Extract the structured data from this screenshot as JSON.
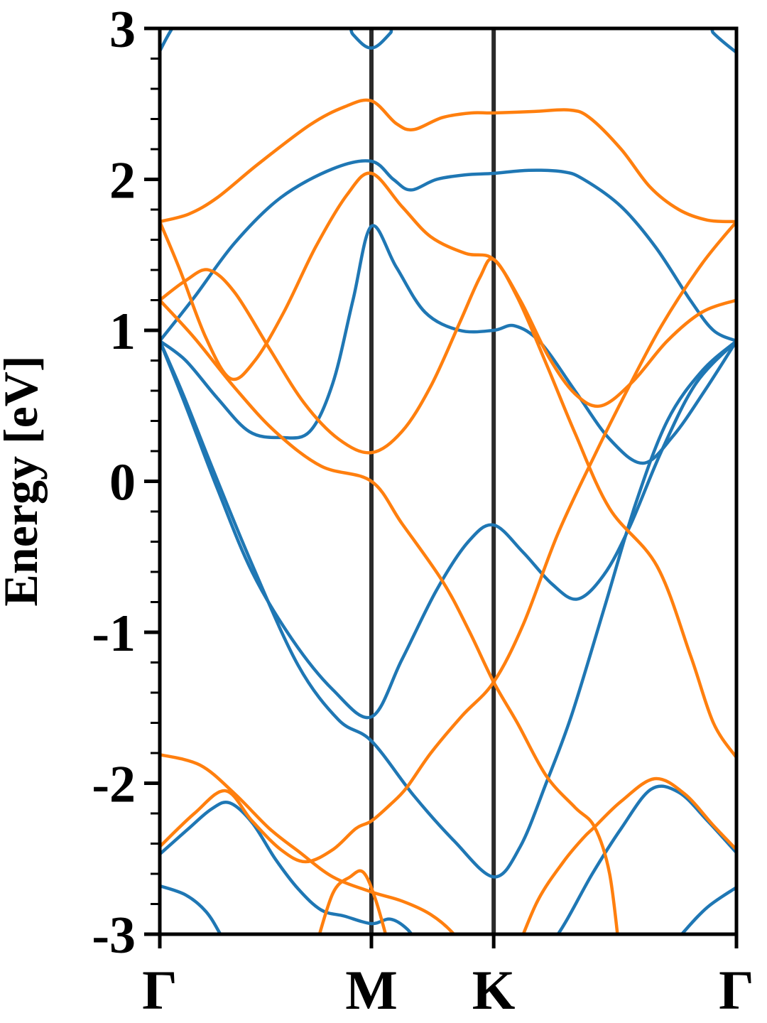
{
  "chart_data": {
    "type": "line",
    "title": "",
    "xlabel": "",
    "ylabel": "Energy [eV]",
    "ylim": [
      -3,
      3
    ],
    "grid": false,
    "legend_position": "none",
    "y_major_ticks": [
      3,
      2,
      1,
      0,
      -1,
      -2,
      -3
    ],
    "y_minor_step": 0.2,
    "x_axis_note": "k-path through high-symmetry points, positions as fraction of total path",
    "x_ticks": [
      {
        "label": "Γ",
        "pos": 0.0
      },
      {
        "label": "M",
        "pos": 0.367
      },
      {
        "label": "K",
        "pos": 0.579
      },
      {
        "label": "Γ",
        "pos": 1.0
      }
    ],
    "high_symmetry_vlines": [
      0.367,
      0.579
    ],
    "colors": {
      "band_blue": "#1f77b4",
      "band_orange": "#ff7f0e",
      "axis": "#000000",
      "vline": "#2a2a2a"
    },
    "series": [
      {
        "name": "blue-band-1",
        "color": "band_blue",
        "points": [
          [
            0,
            2.85
          ],
          [
            0.02,
            2.99
          ],
          [
            0.05,
            3.15
          ],
          [
            0.3,
            3.15
          ],
          [
            0.335,
            2.96
          ],
          [
            0.367,
            2.87
          ],
          [
            0.4,
            2.97
          ],
          [
            0.435,
            3.15
          ],
          [
            0.92,
            3.15
          ],
          [
            0.96,
            2.97
          ],
          [
            1,
            2.84
          ]
        ]
      },
      {
        "name": "blue-band-2",
        "color": "band_blue",
        "points": [
          [
            0,
            0.93
          ],
          [
            0.06,
            1.22
          ],
          [
            0.13,
            1.58
          ],
          [
            0.21,
            1.88
          ],
          [
            0.3,
            2.07
          ],
          [
            0.367,
            2.12
          ],
          [
            0.405,
            2.0
          ],
          [
            0.435,
            1.93
          ],
          [
            0.48,
            2.0
          ],
          [
            0.53,
            2.03
          ],
          [
            0.579,
            2.04
          ],
          [
            0.64,
            2.06
          ],
          [
            0.7,
            2.05
          ],
          [
            0.735,
            2.0
          ],
          [
            0.8,
            1.82
          ],
          [
            0.86,
            1.55
          ],
          [
            0.92,
            1.2
          ],
          [
            0.96,
            1.0
          ],
          [
            1,
            0.93
          ]
        ]
      },
      {
        "name": "blue-band-3",
        "color": "band_blue",
        "points": [
          [
            0,
            0.93
          ],
          [
            0.045,
            0.8
          ],
          [
            0.1,
            0.55
          ],
          [
            0.155,
            0.33
          ],
          [
            0.21,
            0.29
          ],
          [
            0.26,
            0.33
          ],
          [
            0.3,
            0.65
          ],
          [
            0.335,
            1.2
          ],
          [
            0.367,
            1.69
          ],
          [
            0.41,
            1.42
          ],
          [
            0.46,
            1.12
          ],
          [
            0.52,
            1.0
          ],
          [
            0.579,
            1.0
          ],
          [
            0.615,
            1.03
          ],
          [
            0.66,
            0.92
          ],
          [
            0.72,
            0.6
          ],
          [
            0.78,
            0.28
          ],
          [
            0.838,
            0.12
          ],
          [
            0.89,
            0.3
          ],
          [
            0.945,
            0.6
          ],
          [
            1,
            0.93
          ]
        ]
      },
      {
        "name": "blue-band-4",
        "color": "band_blue",
        "points": [
          [
            0,
            0.93
          ],
          [
            0.045,
            0.5
          ],
          [
            0.1,
            -0.05
          ],
          [
            0.16,
            -0.6
          ],
          [
            0.23,
            -1.05
          ],
          [
            0.3,
            -1.38
          ],
          [
            0.367,
            -1.56
          ],
          [
            0.42,
            -1.18
          ],
          [
            0.48,
            -0.72
          ],
          [
            0.535,
            -0.4
          ],
          [
            0.579,
            -0.29
          ],
          [
            0.63,
            -0.47
          ],
          [
            0.68,
            -0.68
          ],
          [
            0.724,
            -0.78
          ],
          [
            0.77,
            -0.62
          ],
          [
            0.815,
            -0.3
          ],
          [
            0.87,
            0.2
          ],
          [
            0.93,
            0.65
          ],
          [
            1,
            0.93
          ]
        ]
      },
      {
        "name": "blue-band-5",
        "color": "band_blue",
        "points": [
          [
            0,
            0.93
          ],
          [
            0.04,
            0.58
          ],
          [
            0.09,
            0.1
          ],
          [
            0.16,
            -0.55
          ],
          [
            0.24,
            -1.22
          ],
          [
            0.31,
            -1.58
          ],
          [
            0.367,
            -1.72
          ],
          [
            0.44,
            -2.08
          ],
          [
            0.51,
            -2.38
          ],
          [
            0.579,
            -2.62
          ],
          [
            0.625,
            -2.42
          ],
          [
            0.67,
            -2.0
          ],
          [
            0.714,
            -1.55
          ],
          [
            0.77,
            -0.85
          ],
          [
            0.825,
            -0.15
          ],
          [
            0.88,
            0.4
          ],
          [
            0.94,
            0.73
          ],
          [
            1,
            0.93
          ]
        ]
      },
      {
        "name": "blue-band-6",
        "color": "band_blue",
        "points": [
          [
            0,
            -2.47
          ],
          [
            0.05,
            -2.3
          ],
          [
            0.09,
            -2.17
          ],
          [
            0.121,
            -2.13
          ],
          [
            0.16,
            -2.26
          ],
          [
            0.2,
            -2.5
          ],
          [
            0.24,
            -2.7
          ],
          [
            0.28,
            -2.84
          ],
          [
            0.32,
            -2.88
          ],
          [
            0.367,
            -2.93
          ],
          [
            0.4,
            -2.9
          ],
          [
            0.43,
            -2.97
          ],
          [
            0.46,
            -3.12
          ],
          [
            0.52,
            -3.3
          ],
          [
            0.62,
            -3.3
          ],
          [
            0.687,
            -3.02
          ],
          [
            0.75,
            -2.6
          ],
          [
            0.8,
            -2.3
          ],
          [
            0.852,
            -2.04
          ],
          [
            0.9,
            -2.06
          ],
          [
            0.95,
            -2.25
          ],
          [
            1,
            -2.46
          ]
        ]
      },
      {
        "name": "blue-band-7",
        "color": "band_blue",
        "points": [
          [
            0,
            -2.68
          ],
          [
            0.045,
            -2.74
          ],
          [
            0.08,
            -2.85
          ],
          [
            0.105,
            -3.0
          ],
          [
            0.13,
            -3.18
          ],
          [
            0.86,
            -3.2
          ],
          [
            0.905,
            -3.0
          ],
          [
            0.95,
            -2.82
          ],
          [
            1,
            -2.69
          ]
        ]
      },
      {
        "name": "orange-band-1",
        "color": "band_orange",
        "points": [
          [
            0,
            1.72
          ],
          [
            0.05,
            1.77
          ],
          [
            0.1,
            1.88
          ],
          [
            0.17,
            2.1
          ],
          [
            0.26,
            2.36
          ],
          [
            0.32,
            2.48
          ],
          [
            0.367,
            2.52
          ],
          [
            0.41,
            2.37
          ],
          [
            0.44,
            2.33
          ],
          [
            0.49,
            2.41
          ],
          [
            0.54,
            2.44
          ],
          [
            0.579,
            2.44
          ],
          [
            0.65,
            2.45
          ],
          [
            0.71,
            2.46
          ],
          [
            0.745,
            2.41
          ],
          [
            0.8,
            2.2
          ],
          [
            0.85,
            1.95
          ],
          [
            0.9,
            1.8
          ],
          [
            0.95,
            1.73
          ],
          [
            1,
            1.72
          ]
        ]
      },
      {
        "name": "orange-band-2",
        "color": "band_orange",
        "points": [
          [
            0,
            1.72
          ],
          [
            0.035,
            1.4
          ],
          [
            0.08,
            0.95
          ],
          [
            0.123,
            0.68
          ],
          [
            0.165,
            0.8
          ],
          [
            0.215,
            1.12
          ],
          [
            0.27,
            1.55
          ],
          [
            0.325,
            1.9
          ],
          [
            0.367,
            2.04
          ],
          [
            0.42,
            1.82
          ],
          [
            0.47,
            1.62
          ],
          [
            0.53,
            1.51
          ],
          [
            0.579,
            1.47
          ],
          [
            0.625,
            1.2
          ],
          [
            0.675,
            0.82
          ],
          [
            0.72,
            0.58
          ],
          [
            0.765,
            0.5
          ],
          [
            0.82,
            0.66
          ],
          [
            0.88,
            0.93
          ],
          [
            0.94,
            1.12
          ],
          [
            1,
            1.2
          ]
        ]
      },
      {
        "name": "orange-band-3",
        "color": "band_orange",
        "points": [
          [
            0,
            1.2
          ],
          [
            0.045,
            1.33
          ],
          [
            0.085,
            1.4
          ],
          [
            0.13,
            1.25
          ],
          [
            0.19,
            0.88
          ],
          [
            0.25,
            0.52
          ],
          [
            0.31,
            0.28
          ],
          [
            0.367,
            0.19
          ],
          [
            0.42,
            0.33
          ],
          [
            0.47,
            0.63
          ],
          [
            0.52,
            1.05
          ],
          [
            0.555,
            1.35
          ],
          [
            0.579,
            1.47
          ],
          [
            0.62,
            1.22
          ],
          [
            0.67,
            0.78
          ],
          [
            0.72,
            0.32
          ],
          [
            0.78,
            -0.18
          ],
          [
            0.862,
            -0.56
          ],
          [
            0.92,
            -1.15
          ],
          [
            0.96,
            -1.6
          ],
          [
            1,
            -1.83
          ]
        ]
      },
      {
        "name": "orange-band-4",
        "color": "band_orange",
        "points": [
          [
            0,
            1.2
          ],
          [
            0.06,
            0.95
          ],
          [
            0.13,
            0.62
          ],
          [
            0.2,
            0.33
          ],
          [
            0.28,
            0.1
          ],
          [
            0.367,
            0.0
          ],
          [
            0.42,
            -0.28
          ],
          [
            0.49,
            -0.66
          ],
          [
            0.535,
            -0.98
          ],
          [
            0.579,
            -1.33
          ],
          [
            0.62,
            -1.6
          ],
          [
            0.67,
            -1.95
          ],
          [
            0.72,
            -2.16
          ],
          [
            0.754,
            -2.29
          ],
          [
            0.78,
            -2.6
          ],
          [
            0.798,
            -3.15
          ]
        ]
      },
      {
        "name": "orange-band-5",
        "color": "band_orange",
        "points": [
          [
            0,
            -1.81
          ],
          [
            0.07,
            -1.88
          ],
          [
            0.13,
            -2.07
          ],
          [
            0.19,
            -2.3
          ],
          [
            0.24,
            -2.45
          ],
          [
            0.3,
            -2.62
          ],
          [
            0.367,
            -2.72
          ],
          [
            0.42,
            -2.78
          ],
          [
            0.47,
            -2.87
          ],
          [
            0.51,
            -3.0
          ],
          [
            0.535,
            -3.15
          ]
        ]
      },
      {
        "name": "orange-band-6",
        "color": "band_orange",
        "points": [
          [
            0,
            -2.42
          ],
          [
            0.06,
            -2.2
          ],
          [
            0.114,
            -2.05
          ],
          [
            0.16,
            -2.25
          ],
          [
            0.21,
            -2.44
          ],
          [
            0.253,
            -2.52
          ],
          [
            0.3,
            -2.44
          ],
          [
            0.34,
            -2.3
          ],
          [
            0.367,
            -2.25
          ],
          [
            0.4,
            -2.14
          ],
          [
            0.428,
            -2.03
          ],
          [
            0.47,
            -1.8
          ],
          [
            0.525,
            -1.55
          ],
          [
            0.579,
            -1.33
          ],
          [
            0.63,
            -0.95
          ],
          [
            0.69,
            -0.35
          ],
          [
            0.755,
            0.18
          ],
          [
            0.81,
            0.6
          ],
          [
            0.87,
            1.03
          ],
          [
            0.94,
            1.44
          ],
          [
            1,
            1.72
          ]
        ]
      },
      {
        "name": "orange-band-7",
        "color": "band_orange",
        "points": [
          [
            0.268,
            -3.12
          ],
          [
            0.3,
            -2.73
          ],
          [
            0.33,
            -2.62
          ],
          [
            0.353,
            -2.59
          ],
          [
            0.375,
            -2.78
          ],
          [
            0.4,
            -3.12
          ]
        ]
      },
      {
        "name": "orange-band-8",
        "color": "band_orange",
        "points": [
          [
            0.615,
            -3.15
          ],
          [
            0.655,
            -2.78
          ],
          [
            0.7,
            -2.52
          ],
          [
            0.735,
            -2.36
          ],
          [
            0.754,
            -2.29
          ],
          [
            0.8,
            -2.12
          ],
          [
            0.858,
            -1.97
          ],
          [
            0.91,
            -2.07
          ],
          [
            0.96,
            -2.28
          ],
          [
            1,
            -2.44
          ]
        ]
      }
    ]
  }
}
